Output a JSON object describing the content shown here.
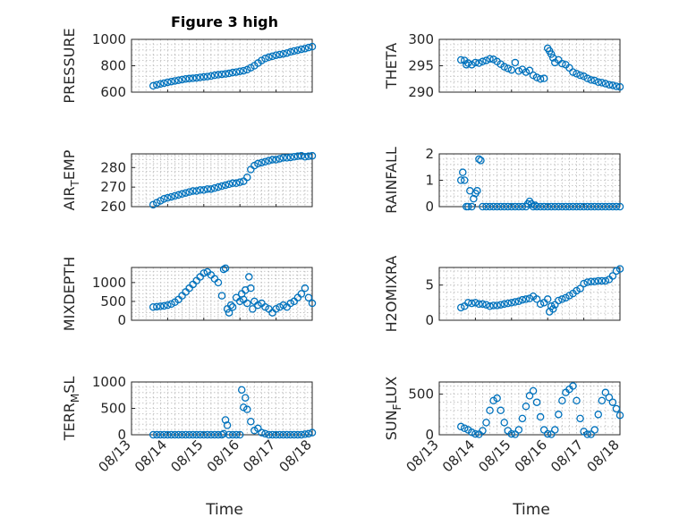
{
  "figure": {
    "title": "Figure 3 high",
    "marker_color": "#0072BD",
    "x_axis": {
      "label": "Time",
      "tick_values": [
        0,
        1,
        2,
        3,
        4,
        5
      ],
      "tick_labels": [
        "08/13",
        "08/14",
        "08/15",
        "08/16",
        "08/17",
        "08/18"
      ],
      "range": [
        0,
        5
      ]
    },
    "grid": "on (minor, dotted)"
  },
  "chart_data": [
    {
      "type": "scatter",
      "ylabel": "PRESSURE",
      "ylabel_sub": "",
      "ylim": [
        600,
        1000
      ],
      "yticks": [
        600,
        800,
        1000
      ],
      "x": [
        0.6,
        0.7,
        0.8,
        0.9,
        1.0,
        1.1,
        1.2,
        1.3,
        1.4,
        1.5,
        1.6,
        1.7,
        1.8,
        1.9,
        2.0,
        2.1,
        2.2,
        2.3,
        2.4,
        2.5,
        2.6,
        2.7,
        2.8,
        2.9,
        3.0,
        3.1,
        3.2,
        3.3,
        3.4,
        3.5,
        3.6,
        3.7,
        3.8,
        3.9,
        4.0,
        4.1,
        4.2,
        4.3,
        4.4,
        4.5,
        4.6,
        4.7,
        4.8,
        4.9,
        5.0
      ],
      "y": [
        648,
        655,
        662,
        668,
        675,
        680,
        685,
        690,
        695,
        700,
        703,
        705,
        708,
        712,
        715,
        718,
        722,
        728,
        732,
        735,
        738,
        742,
        748,
        752,
        758,
        762,
        770,
        785,
        800,
        820,
        840,
        855,
        865,
        872,
        880,
        885,
        890,
        896,
        905,
        912,
        918,
        925,
        930,
        938,
        945
      ]
    },
    {
      "type": "scatter",
      "ylabel": "THETA",
      "ylabel_sub": "",
      "ylim": [
        290,
        300
      ],
      "yticks": [
        290,
        295,
        300
      ],
      "x": [
        0.6,
        0.7,
        0.75,
        0.8,
        0.9,
        1.0,
        1.1,
        1.2,
        1.3,
        1.4,
        1.5,
        1.6,
        1.7,
        1.8,
        1.9,
        2.0,
        2.1,
        2.2,
        2.3,
        2.4,
        2.5,
        2.6,
        2.7,
        2.8,
        2.9,
        3.0,
        3.05,
        3.1,
        3.15,
        3.2,
        3.3,
        3.4,
        3.5,
        3.6,
        3.7,
        3.8,
        3.9,
        4.0,
        4.1,
        4.2,
        4.3,
        4.4,
        4.5,
        4.6,
        4.7,
        4.8,
        4.9,
        5.0
      ],
      "y": [
        296.1,
        296.0,
        295.2,
        295.5,
        295.2,
        295.6,
        295.5,
        295.8,
        296.0,
        296.3,
        296.2,
        295.8,
        295.3,
        294.8,
        294.5,
        294.2,
        295.6,
        294.0,
        294.3,
        293.8,
        294.1,
        293.2,
        292.8,
        292.5,
        292.6,
        298.3,
        297.8,
        297.2,
        296.5,
        295.6,
        296.1,
        295.4,
        295.2,
        294.6,
        293.8,
        293.5,
        293.2,
        293.0,
        292.6,
        292.3,
        292.2,
        291.9,
        291.8,
        291.6,
        291.4,
        291.3,
        291.1,
        291.0
      ]
    },
    {
      "type": "scatter",
      "ylabel": "AIR",
      "ylabel_sub": "T",
      "ylabel_tail": "EMP",
      "ylim": [
        260,
        287
      ],
      "yticks": [
        260,
        270,
        280
      ],
      "x": [
        0.6,
        0.7,
        0.8,
        0.9,
        1.0,
        1.1,
        1.2,
        1.3,
        1.4,
        1.5,
        1.6,
        1.7,
        1.8,
        1.9,
        2.0,
        2.1,
        2.2,
        2.3,
        2.4,
        2.5,
        2.6,
        2.7,
        2.8,
        2.9,
        3.0,
        3.1,
        3.2,
        3.3,
        3.4,
        3.5,
        3.6,
        3.7,
        3.8,
        3.9,
        4.0,
        4.1,
        4.2,
        4.3,
        4.4,
        4.5,
        4.6,
        4.7,
        4.8,
        4.9,
        5.0
      ],
      "y": [
        261,
        262,
        263,
        264,
        264.5,
        265,
        265.5,
        266,
        266.5,
        267,
        267.5,
        268,
        268,
        268.5,
        268.5,
        269,
        269,
        269.5,
        270,
        270.5,
        271,
        271.5,
        272,
        272,
        272.5,
        273,
        275,
        279,
        281,
        282,
        282.5,
        283,
        283.5,
        284,
        284,
        284.5,
        285,
        285,
        285.2,
        285.5,
        285.8,
        286,
        285.5,
        285.8,
        286
      ]
    },
    {
      "type": "scatter",
      "ylabel": "RAINFALL",
      "ylabel_sub": "",
      "ylim": [
        0,
        2
      ],
      "yticks": [
        0,
        1,
        2
      ],
      "x": [
        0.6,
        0.65,
        0.7,
        0.75,
        0.8,
        0.85,
        0.9,
        0.95,
        1.0,
        1.05,
        1.1,
        1.15,
        1.2,
        1.3,
        1.4,
        1.5,
        1.6,
        1.7,
        1.8,
        1.9,
        2.0,
        2.1,
        2.2,
        2.3,
        2.4,
        2.45,
        2.5,
        2.55,
        2.6,
        2.65,
        2.7,
        2.8,
        2.9,
        3.0,
        3.1,
        3.2,
        3.3,
        3.4,
        3.5,
        3.6,
        3.7,
        3.8,
        3.9,
        4.0,
        4.1,
        4.2,
        4.3,
        4.4,
        4.5,
        4.6,
        4.7,
        4.8,
        4.9,
        5.0
      ],
      "y": [
        1.0,
        1.3,
        1.0,
        0,
        0,
        0.6,
        0,
        0.3,
        0.5,
        0.6,
        1.8,
        1.75,
        0,
        0,
        0,
        0,
        0,
        0,
        0,
        0,
        0,
        0,
        0,
        0,
        0,
        0.1,
        0.2,
        0.1,
        0,
        0.05,
        0,
        0,
        0,
        0,
        0,
        0,
        0,
        0,
        0,
        0,
        0,
        0,
        0,
        0,
        0,
        0,
        0,
        0,
        0,
        0,
        0,
        0,
        0,
        0
      ]
    },
    {
      "type": "scatter",
      "ylabel": "MIXDEPTH",
      "ylabel_sub": "",
      "ylim": [
        0,
        1400
      ],
      "yticks": [
        0,
        500,
        1000
      ],
      "x": [
        0.6,
        0.7,
        0.8,
        0.9,
        1.0,
        1.1,
        1.2,
        1.3,
        1.4,
        1.5,
        1.6,
        1.7,
        1.8,
        1.9,
        2.0,
        2.1,
        2.2,
        2.3,
        2.4,
        2.5,
        2.55,
        2.6,
        2.65,
        2.7,
        2.75,
        2.8,
        2.9,
        3.0,
        3.05,
        3.1,
        3.15,
        3.2,
        3.25,
        3.3,
        3.35,
        3.4,
        3.5,
        3.6,
        3.7,
        3.8,
        3.9,
        4.0,
        4.1,
        4.2,
        4.3,
        4.4,
        4.5,
        4.6,
        4.7,
        4.8,
        4.9,
        5.0
      ],
      "y": [
        350,
        360,
        370,
        380,
        400,
        430,
        480,
        550,
        650,
        750,
        850,
        950,
        1050,
        1150,
        1250,
        1280,
        1200,
        1100,
        1000,
        650,
        1350,
        1380,
        300,
        200,
        400,
        350,
        600,
        500,
        700,
        550,
        800,
        450,
        1150,
        850,
        300,
        500,
        400,
        450,
        350,
        300,
        200,
        300,
        350,
        400,
        350,
        450,
        500,
        600,
        700,
        850,
        600,
        450
      ]
    },
    {
      "type": "scatter",
      "ylabel": "H2OMIXRA",
      "ylabel_sub": "",
      "ylim": [
        0,
        7.5
      ],
      "yticks": [
        0,
        5
      ],
      "x": [
        0.6,
        0.7,
        0.8,
        0.9,
        1.0,
        1.1,
        1.2,
        1.3,
        1.4,
        1.5,
        1.6,
        1.7,
        1.8,
        1.9,
        2.0,
        2.1,
        2.2,
        2.3,
        2.4,
        2.5,
        2.6,
        2.7,
        2.8,
        2.9,
        3.0,
        3.05,
        3.1,
        3.15,
        3.2,
        3.3,
        3.4,
        3.5,
        3.6,
        3.7,
        3.8,
        3.9,
        4.0,
        4.1,
        4.2,
        4.3,
        4.4,
        4.5,
        4.6,
        4.7,
        4.8,
        4.9,
        5.0
      ],
      "y": [
        1.8,
        2.0,
        2.5,
        2.4,
        2.5,
        2.3,
        2.3,
        2.2,
        2.0,
        2.1,
        2.1,
        2.2,
        2.3,
        2.4,
        2.5,
        2.6,
        2.7,
        2.9,
        3.0,
        3.1,
        3.4,
        3.0,
        2.3,
        2.5,
        3.0,
        1.2,
        2.0,
        1.6,
        2.2,
        2.8,
        3.0,
        3.2,
        3.5,
        3.8,
        4.2,
        4.5,
        5.2,
        5.4,
        5.5,
        5.5,
        5.6,
        5.6,
        5.6,
        5.8,
        6.3,
        7.0,
        7.3
      ]
    },
    {
      "type": "scatter",
      "ylabel": "TERR",
      "ylabel_sub": "M",
      "ylabel_tail": "SL",
      "ylim": [
        0,
        1000
      ],
      "yticks": [
        0,
        500,
        1000
      ],
      "x": [
        0.6,
        0.7,
        0.8,
        0.9,
        1.0,
        1.1,
        1.2,
        1.3,
        1.4,
        1.5,
        1.6,
        1.7,
        1.8,
        1.9,
        2.0,
        2.1,
        2.2,
        2.3,
        2.4,
        2.5,
        2.55,
        2.6,
        2.65,
        2.7,
        2.8,
        2.9,
        3.0,
        3.05,
        3.1,
        3.15,
        3.2,
        3.3,
        3.4,
        3.5,
        3.6,
        3.7,
        3.8,
        3.9,
        4.0,
        4.1,
        4.2,
        4.3,
        4.4,
        4.5,
        4.6,
        4.7,
        4.8,
        4.9,
        5.0
      ],
      "y": [
        0,
        0,
        0,
        0,
        0,
        0,
        0,
        0,
        0,
        0,
        0,
        0,
        0,
        0,
        0,
        0,
        0,
        0,
        0,
        0,
        20,
        280,
        180,
        0,
        0,
        0,
        0,
        850,
        520,
        700,
        480,
        250,
        80,
        120,
        40,
        20,
        0,
        0,
        0,
        0,
        0,
        0,
        0,
        0,
        0,
        0,
        10,
        20,
        40
      ]
    },
    {
      "type": "scatter",
      "ylabel": "SUN",
      "ylabel_sub": "F",
      "ylabel_tail": "LUX",
      "ylim": [
        0,
        650
      ],
      "yticks": [
        0,
        500
      ],
      "x": [
        0.6,
        0.7,
        0.8,
        0.9,
        1.0,
        1.1,
        1.2,
        1.3,
        1.4,
        1.5,
        1.6,
        1.7,
        1.8,
        1.9,
        2.0,
        2.1,
        2.2,
        2.3,
        2.4,
        2.5,
        2.6,
        2.7,
        2.8,
        2.9,
        3.0,
        3.1,
        3.2,
        3.3,
        3.4,
        3.5,
        3.6,
        3.7,
        3.8,
        3.9,
        4.0,
        4.1,
        4.2,
        4.3,
        4.4,
        4.5,
        4.6,
        4.7,
        4.8,
        4.9,
        5.0
      ],
      "y": [
        100,
        80,
        60,
        30,
        10,
        5,
        50,
        150,
        300,
        420,
        450,
        300,
        150,
        50,
        10,
        5,
        60,
        200,
        350,
        480,
        540,
        400,
        220,
        60,
        10,
        5,
        60,
        250,
        420,
        520,
        560,
        600,
        420,
        200,
        40,
        5,
        5,
        60,
        250,
        420,
        520,
        460,
        400,
        320,
        240
      ]
    }
  ]
}
